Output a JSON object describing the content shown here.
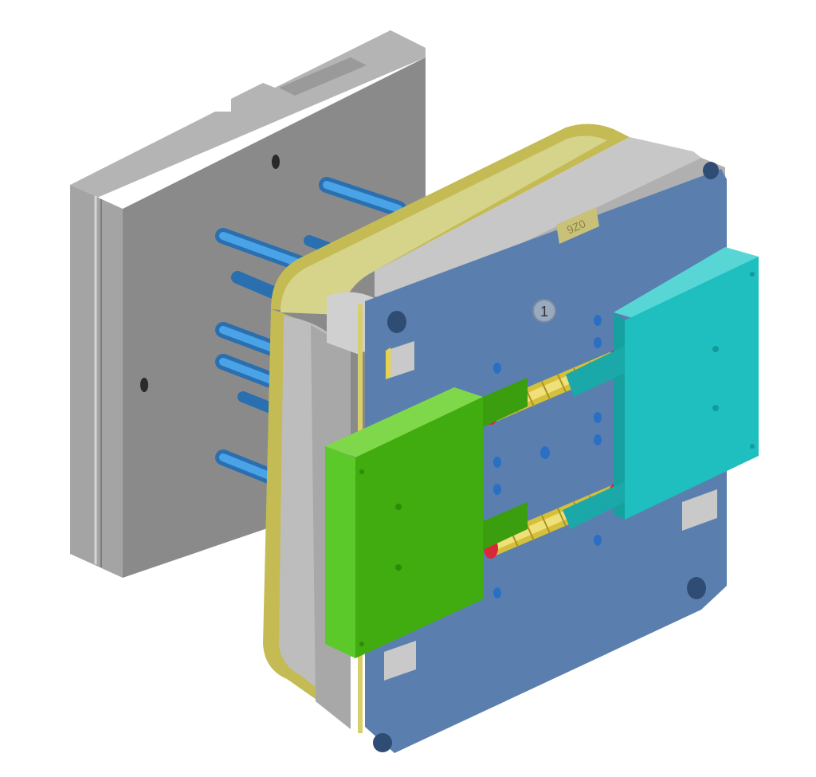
{
  "scene": {
    "plate_marking": "9Z0",
    "part_number": "1"
  },
  "colors": {
    "background": "#ffffff",
    "rear_plate": "#8c8c8c",
    "rear_plate_light": "#a9a9a9",
    "rear_plate_dark": "#6f6f6f",
    "guide_pins": "#3b8fd4",
    "cavity_plate": "#5479a9",
    "frame_steel": "#b8b8b8",
    "frame_gold": "#c8c060",
    "slider_left": "#3fae12",
    "slider_right": "#1fbfbf",
    "cores": "#e3d24a",
    "core_tips": "#d8283a",
    "wear_pads": "#c9c9c9"
  },
  "icons": [
    "guide-pin-icon",
    "screw-hole-icon",
    "wear-pad-icon"
  ]
}
